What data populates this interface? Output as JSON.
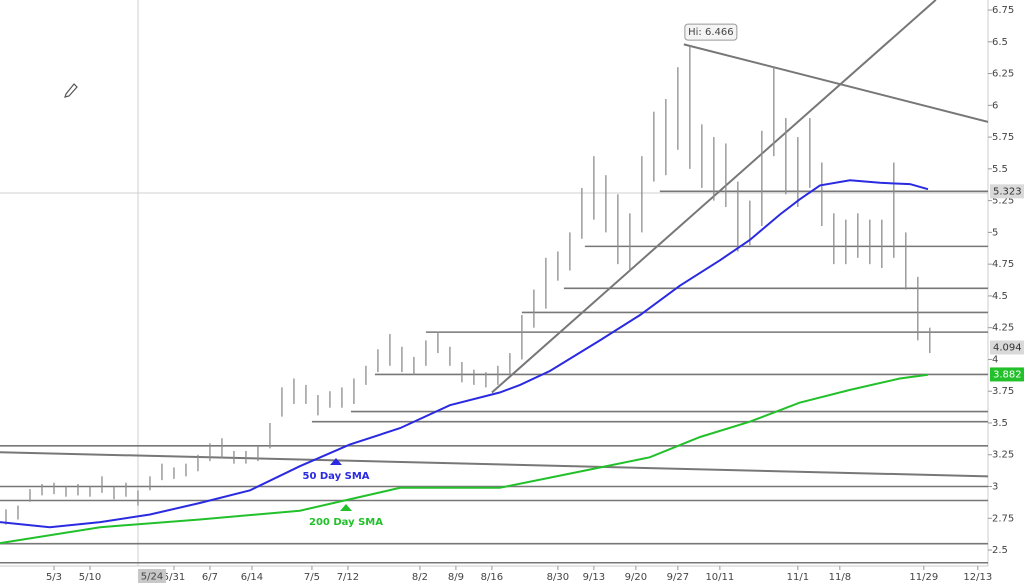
{
  "chart_data": {
    "type": "ohlc",
    "xlim": [
      0,
      164.7
    ],
    "ylim": [
      2.217,
      6.829
    ],
    "xticks": [
      {
        "value": 9,
        "label": "5/3"
      },
      {
        "value": 15,
        "label": "5/10"
      },
      {
        "value": 29,
        "label": "5/31"
      },
      {
        "value": 35,
        "label": "6/7"
      },
      {
        "value": 42,
        "label": "6/14"
      },
      {
        "value": 52,
        "label": "7/5"
      },
      {
        "value": 58,
        "label": "7/12"
      },
      {
        "value": 70,
        "label": "8/2"
      },
      {
        "value": 76,
        "label": "8/9"
      },
      {
        "value": 82,
        "label": "8/16"
      },
      {
        "value": 93,
        "label": "8/30"
      },
      {
        "value": 99,
        "label": "9/13"
      },
      {
        "value": 106,
        "label": "9/20"
      },
      {
        "value": 113,
        "label": "9/27"
      },
      {
        "value": 120,
        "label": "10/11"
      },
      {
        "value": 133,
        "label": "11/1"
      },
      {
        "value": 140,
        "label": "11/8"
      },
      {
        "value": 154,
        "label": "11/29"
      },
      {
        "value": 163,
        "label": "12/13"
      }
    ],
    "yticks": [
      2.5,
      2.75,
      3,
      3.25,
      3.5,
      3.75,
      4,
      4.25,
      4.5,
      4.75,
      5,
      5.25,
      5.5,
      5.75,
      6,
      6.25,
      6.5,
      6.75
    ],
    "bar_color": "#8c8c8c",
    "bars": {
      "x": [
        1,
        3,
        5,
        7,
        9,
        11,
        13,
        15,
        17,
        19,
        21,
        23,
        25,
        27,
        29,
        31,
        33,
        35,
        37,
        39,
        41,
        43,
        45,
        47,
        49,
        51,
        53,
        55,
        57,
        59,
        61,
        63,
        65,
        67,
        69,
        71,
        73,
        75,
        77,
        79,
        81,
        83,
        85,
        87,
        89,
        91,
        93,
        95,
        97,
        99,
        101,
        103,
        105,
        107,
        109,
        111,
        113,
        115,
        117,
        119,
        121,
        123,
        125,
        127,
        129,
        131,
        133,
        135,
        137,
        139,
        141,
        143,
        145,
        147,
        149,
        151,
        153,
        155
      ],
      "high": [
        2.82,
        2.85,
        2.98,
        3.02,
        3.03,
        3.0,
        3.02,
        3.0,
        3.08,
        3.0,
        3.03,
        2.97,
        3.08,
        3.18,
        3.15,
        3.18,
        3.25,
        3.34,
        3.38,
        3.28,
        3.28,
        3.32,
        3.5,
        3.78,
        3.85,
        3.8,
        3.72,
        3.75,
        3.78,
        3.85,
        3.95,
        4.08,
        4.2,
        4.1,
        4.02,
        4.15,
        4.22,
        4.1,
        3.98,
        3.92,
        3.9,
        3.95,
        4.05,
        4.35,
        4.55,
        4.8,
        4.85,
        5.0,
        5.35,
        5.6,
        5.45,
        5.3,
        5.15,
        5.6,
        5.95,
        6.05,
        6.3,
        6.466,
        5.85,
        5.75,
        5.7,
        5.4,
        5.25,
        5.8,
        6.3,
        5.9,
        5.75,
        5.9,
        5.55,
        5.15,
        5.1,
        5.15,
        5.1,
        5.1,
        5.55,
        5.0,
        4.65,
        4.25
      ],
      "low": [
        2.7,
        2.74,
        2.88,
        2.93,
        2.94,
        2.92,
        2.93,
        2.92,
        2.95,
        2.9,
        2.92,
        2.85,
        2.97,
        3.05,
        3.06,
        3.08,
        3.12,
        3.2,
        3.22,
        3.18,
        3.18,
        3.2,
        3.3,
        3.55,
        3.65,
        3.65,
        3.56,
        3.62,
        3.62,
        3.65,
        3.8,
        3.9,
        3.95,
        3.9,
        3.88,
        3.95,
        4.05,
        3.95,
        3.82,
        3.8,
        3.78,
        3.8,
        3.88,
        4.0,
        4.25,
        4.4,
        4.62,
        4.7,
        4.95,
        5.1,
        5.0,
        4.75,
        4.7,
        5.0,
        5.4,
        5.45,
        5.65,
        5.5,
        5.35,
        5.25,
        5.2,
        4.85,
        4.9,
        5.05,
        5.6,
        5.3,
        5.2,
        5.35,
        5.05,
        4.75,
        4.75,
        4.8,
        4.75,
        4.72,
        4.8,
        4.55,
        4.15,
        4.05
      ]
    },
    "series": [
      {
        "name": "50 Day SMA",
        "color": "#2a2ae0",
        "x": [
          0,
          8.3,
          16.7,
          25,
          33.3,
          41.7,
          50,
          58.3,
          66.7,
          75,
          83.3,
          86.7,
          91.7,
          100,
          106.7,
          113.3,
          120,
          125,
          130,
          133.3,
          136.7,
          141.7,
          146.7,
          151.7,
          154.7
        ],
        "values": [
          2.72,
          2.68,
          2.72,
          2.78,
          2.87,
          2.97,
          3.16,
          3.33,
          3.46,
          3.64,
          3.74,
          3.8,
          3.91,
          4.15,
          4.35,
          4.58,
          4.78,
          4.94,
          5.14,
          5.26,
          5.37,
          5.41,
          5.39,
          5.38,
          5.34
        ]
      },
      {
        "name": "200 Day SMA",
        "color": "#22c02a",
        "x": [
          0,
          16.7,
          33.3,
          50,
          66.7,
          83.3,
          91.7,
          100,
          108.3,
          116.7,
          125,
          133.3,
          141.7,
          150,
          154.7
        ],
        "values": [
          2.555,
          2.68,
          2.74,
          2.81,
          2.99,
          2.99,
          3.07,
          3.15,
          3.23,
          3.39,
          3.51,
          3.66,
          3.76,
          3.85,
          3.88
        ]
      }
    ],
    "line_color": "#777777",
    "hlines": [
      {
        "value": 5.323,
        "start": 110
      },
      {
        "value": 4.89,
        "start": 97.5
      },
      {
        "value": 4.56,
        "start": 94
      },
      {
        "value": 4.37,
        "start": 87
      },
      {
        "value": 4.215,
        "start": 71
      },
      {
        "value": 3.882,
        "start": 62.5
      },
      {
        "value": 3.59,
        "start": 58.5
      },
      {
        "value": 3.51,
        "start": 52
      },
      {
        "value": 3.32,
        "start": 0
      },
      {
        "value": 3.0,
        "start": 0
      },
      {
        "value": 2.89,
        "start": 0
      },
      {
        "value": 2.55,
        "start": 0
      },
      {
        "value": 2.4,
        "start": 0
      }
    ],
    "trendlines": [
      {
        "points": [
          [
            82,
            3.74
          ],
          [
            156,
            6.83
          ]
        ]
      },
      {
        "points": [
          [
            114,
            6.48
          ],
          [
            164.7,
            5.87
          ]
        ]
      },
      {
        "points": [
          [
            0,
            3.27
          ],
          [
            164.7,
            3.08
          ]
        ]
      }
    ],
    "price_labels": [
      {
        "value": 5.323,
        "color": "#d9d9d9"
      },
      {
        "value": 4.094,
        "color": "#d9d9d9"
      },
      {
        "value": 3.882,
        "color": "#22c02a"
      }
    ],
    "high_label": {
      "value": 6.466,
      "label": "Hi: 6.466",
      "x": 114.5
    },
    "crosshair": {
      "x": {
        "value": 23,
        "label": "5/24"
      },
      "y": 5.31
    }
  }
}
